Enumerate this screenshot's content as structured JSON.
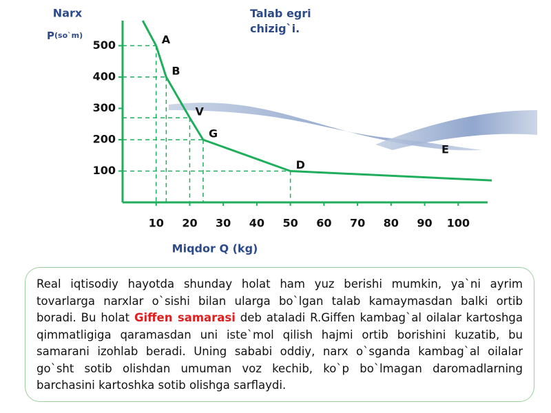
{
  "chart_data": {
    "type": "line",
    "title": "Talab egri chizig`i.",
    "y_label": "Narx",
    "y_symbol": "P",
    "y_unit": "(so`m)",
    "x_label": "Miqdor Q (kg)",
    "x": [
      6,
      10,
      13,
      20,
      24,
      50,
      100,
      110
    ],
    "values": [
      580,
      500,
      400,
      270,
      200,
      100,
      75,
      70
    ],
    "point_labels": [
      null,
      "A",
      "B",
      "V",
      "G",
      "D",
      null,
      null
    ],
    "annotation": "E",
    "color": "#1fae5b",
    "xlim": [
      0,
      110
    ],
    "ylim": [
      0,
      580
    ],
    "xticks": [
      10,
      20,
      30,
      40,
      50,
      60,
      70,
      80,
      90,
      100
    ],
    "yticks": [
      100,
      200,
      300,
      400,
      500
    ]
  },
  "text": {
    "before": "Real iqtisodiy hayotda shunday holat ham yuz berishi mumkin, ya`ni ayrim tovarlarga narxlar o`sishi bilan ularga bo`lgan talab  kamaymasdan balki ortib boradi. Bu holat ",
    "highlight": "Giffen samarasi",
    "after": " deb  ataladi R.Giffen kambag`al oilalar  kartoshga qimmatligiga qaramasdan uni iste`mol qilish hajmi ortib borishini kuzatib, bu samarani izohlab beradi. Uning sababi oddiy, narx o`sganda kambag`al oilalar  go`sht sotib olishdan umuman voz kechib, ko`p  bo`lmagan daromadlarning barchasini kartoshka sotib olishga sarflaydi."
  }
}
